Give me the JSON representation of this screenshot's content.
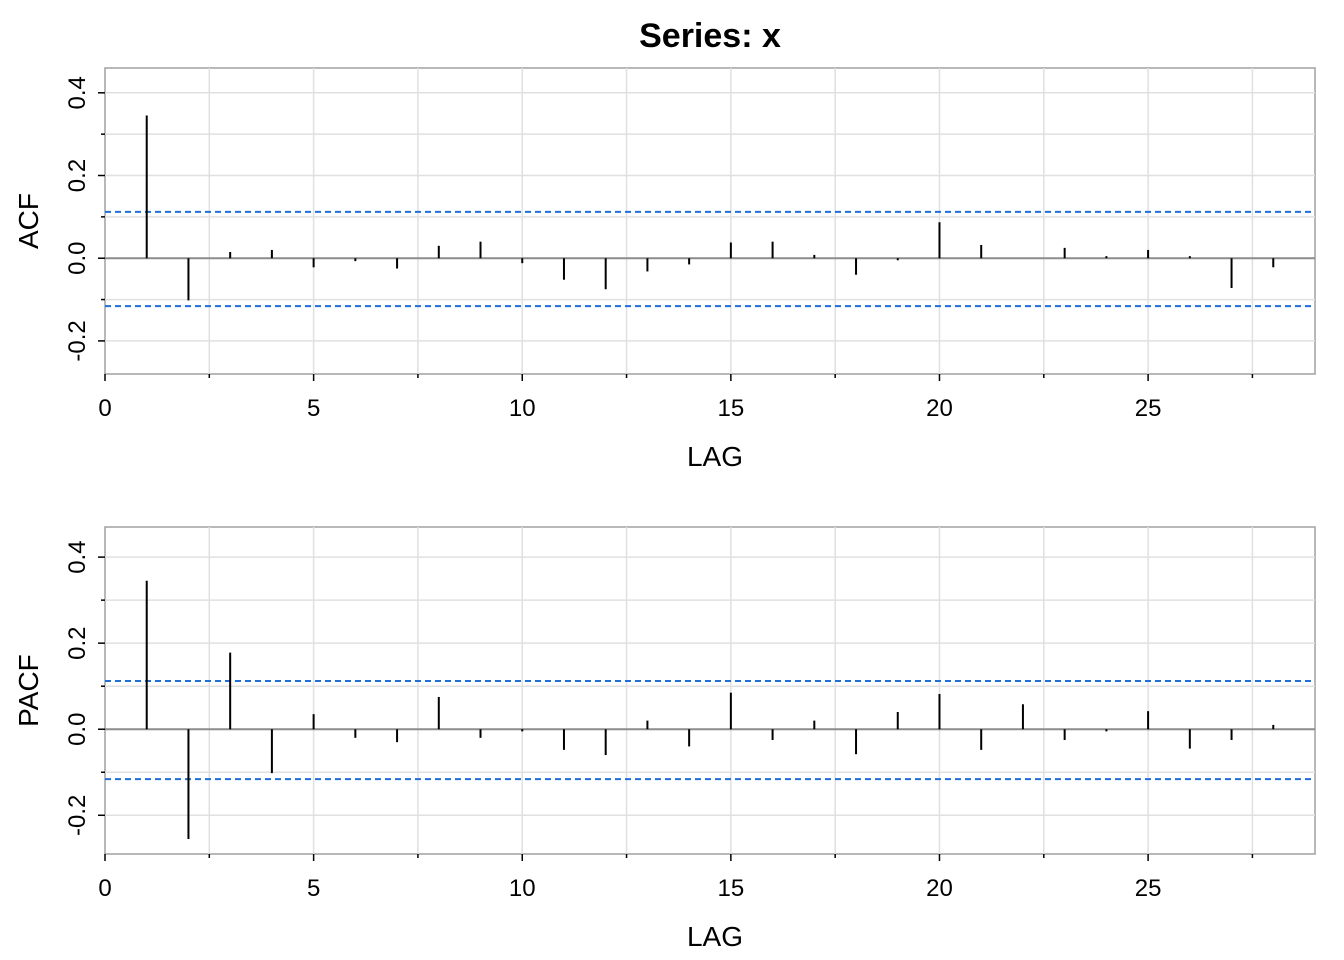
{
  "title": "Series:  x",
  "colors": {
    "spike": "#000000",
    "confidence_band": "#1f6fd6",
    "grid": "#e0e0e0",
    "zero_line": "#8c8c8c",
    "frame": "#a0a0a0"
  },
  "chart_data": [
    {
      "type": "bar",
      "subtype": "autocorrelation-spikes",
      "xlabel": "LAG",
      "ylabel": "ACF",
      "xlim": [
        0,
        29
      ],
      "ylim": [
        -0.28,
        0.46
      ],
      "x_ticks": [
        0,
        5,
        10,
        15,
        20,
        25
      ],
      "x_tick_labels": [
        "0",
        "5",
        "10",
        "15",
        "20",
        "25"
      ],
      "y_ticks": [
        -0.2,
        0.0,
        0.2,
        0.4
      ],
      "y_tick_labels": [
        "-0.2",
        "0.0",
        "0.2",
        "0.4"
      ],
      "confidence_bounds": [
        0.112,
        -0.116
      ],
      "grid": true,
      "x": [
        1,
        2,
        3,
        4,
        5,
        6,
        7,
        8,
        9,
        10,
        11,
        12,
        13,
        14,
        15,
        16,
        17,
        18,
        19,
        20,
        21,
        22,
        23,
        24,
        25,
        26,
        27,
        28
      ],
      "values": [
        0.345,
        -0.102,
        0.015,
        0.02,
        -0.022,
        -0.007,
        -0.025,
        0.03,
        0.04,
        -0.012,
        -0.052,
        -0.075,
        -0.032,
        -0.015,
        0.038,
        0.04,
        0.008,
        -0.04,
        -0.005,
        0.087,
        0.032,
        0.0,
        0.025,
        0.005,
        0.02,
        0.005,
        -0.072,
        -0.022
      ]
    },
    {
      "type": "bar",
      "subtype": "autocorrelation-spikes",
      "xlabel": "LAG",
      "ylabel": "PACF",
      "xlim": [
        0,
        29
      ],
      "ylim": [
        -0.29,
        0.47
      ],
      "x_ticks": [
        0,
        5,
        10,
        15,
        20,
        25
      ],
      "x_tick_labels": [
        "0",
        "5",
        "10",
        "15",
        "20",
        "25"
      ],
      "y_ticks": [
        -0.2,
        0.0,
        0.2,
        0.4
      ],
      "y_tick_labels": [
        "-0.2",
        "0.0",
        "0.2",
        "0.4"
      ],
      "confidence_bounds": [
        0.112,
        -0.116
      ],
      "grid": true,
      "x": [
        1,
        2,
        3,
        4,
        5,
        6,
        7,
        8,
        9,
        10,
        11,
        12,
        13,
        14,
        15,
        16,
        17,
        18,
        19,
        20,
        21,
        22,
        23,
        24,
        25,
        26,
        27,
        28
      ],
      "values": [
        0.345,
        -0.255,
        0.178,
        -0.102,
        0.035,
        -0.02,
        -0.03,
        0.075,
        -0.02,
        -0.005,
        -0.048,
        -0.06,
        0.02,
        -0.04,
        0.085,
        -0.025,
        0.02,
        -0.058,
        0.04,
        0.082,
        -0.048,
        0.058,
        -0.025,
        -0.005,
        0.042,
        -0.045,
        -0.025,
        0.01
      ]
    }
  ]
}
